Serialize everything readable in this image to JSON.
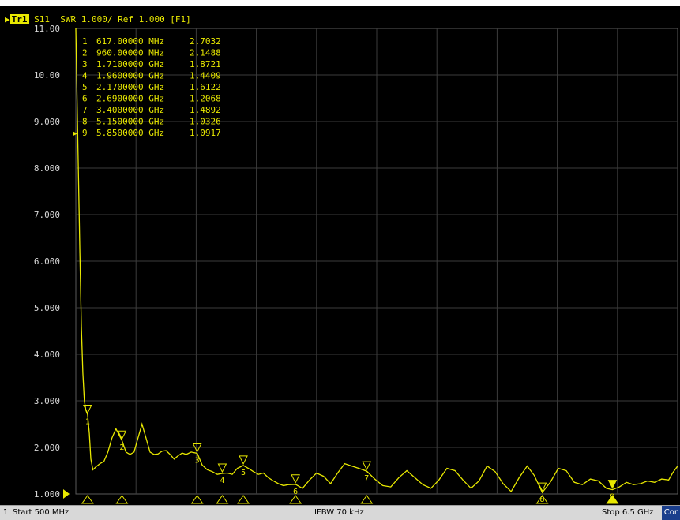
{
  "header": {
    "trace_tag": "Tr1",
    "trace_info": "S11  SWR 1.000/ Ref 1.000 [F1]"
  },
  "colors": {
    "trace": "#e8e800",
    "grid": "#3c3c3c",
    "background": "#000000",
    "cor_badge": "#1a3e8c"
  },
  "status_bar": {
    "channel": "1",
    "start": "Start 500 MHz",
    "ifbw": "IFBW 70 kHz",
    "stop": "Stop 6.5 GHz",
    "cor": "Cor"
  },
  "chart_data": {
    "type": "line",
    "title": "",
    "xlabel": "",
    "ylabel": "",
    "xlim_mhz": [
      500,
      6500
    ],
    "ylim": [
      1.0,
      11.0
    ],
    "y_ticks": [
      "1.000",
      "2.000",
      "3.000",
      "4.000",
      "5.000",
      "6.000",
      "7.000",
      "8.000",
      "9.000",
      "10.00",
      "11.00"
    ],
    "x_divisions": 10,
    "grid": true,
    "reference_level": 1.0,
    "markers": [
      {
        "id": "1",
        "freq": "617.00000 MHz",
        "value": "2.7032",
        "freq_mhz": 617.0,
        "swr": 2.7032,
        "active": false
      },
      {
        "id": "2",
        "freq": "960.00000 MHz",
        "value": "2.1488",
        "freq_mhz": 960.0,
        "swr": 2.1488,
        "active": false
      },
      {
        "id": "3",
        "freq": "1.7100000 GHz",
        "value": "1.8721",
        "freq_mhz": 1710.0,
        "swr": 1.8721,
        "active": false
      },
      {
        "id": "4",
        "freq": "1.9600000 GHz",
        "value": "1.4409",
        "freq_mhz": 1960.0,
        "swr": 1.4409,
        "active": false
      },
      {
        "id": "5",
        "freq": "2.1700000 GHz",
        "value": "1.6122",
        "freq_mhz": 2170.0,
        "swr": 1.6122,
        "active": false
      },
      {
        "id": "6",
        "freq": "2.6900000 GHz",
        "value": "1.2068",
        "freq_mhz": 2690.0,
        "swr": 1.2068,
        "active": false
      },
      {
        "id": "7",
        "freq": "3.4000000 GHz",
        "value": "1.4892",
        "freq_mhz": 3400.0,
        "swr": 1.4892,
        "active": false
      },
      {
        "id": "8",
        "freq": "5.1500000 GHz",
        "value": "1.0326",
        "freq_mhz": 5150.0,
        "swr": 1.0326,
        "active": false
      },
      {
        "id": "9",
        "freq": "5.8500000 GHz",
        "value": "1.0917",
        "freq_mhz": 5850.0,
        "swr": 1.0917,
        "active": true
      }
    ],
    "series": [
      {
        "x": [
          500,
          520,
          540,
          555,
          570,
          585,
          600,
          617,
          635,
          650,
          670,
          700,
          740,
          780,
          820,
          860,
          900,
          960,
          1000,
          1040,
          1080,
          1120,
          1160,
          1200,
          1240,
          1280,
          1320,
          1360,
          1400,
          1440,
          1480,
          1520,
          1560,
          1600,
          1650,
          1710,
          1760,
          1810,
          1860,
          1910,
          1960,
          2010,
          2060,
          2110,
          2170,
          2220,
          2270,
          2320,
          2370,
          2420,
          2470,
          2520,
          2570,
          2620,
          2690,
          2760,
          2830,
          2900,
          2970,
          3040,
          3110,
          3180,
          3250,
          3320,
          3400,
          3480,
          3560,
          3640,
          3720,
          3800,
          3880,
          3960,
          4040,
          4120,
          4200,
          4280,
          4360,
          4440,
          4520,
          4600,
          4680,
          4760,
          4840,
          4920,
          5000,
          5070,
          5150,
          5230,
          5310,
          5390,
          5470,
          5550,
          5630,
          5710,
          5790,
          5850,
          5920,
          5990,
          6060,
          6130,
          6200,
          6270,
          6340,
          6410,
          6450,
          6500
        ],
        "y": [
          11.0,
          8.6,
          6.2,
          4.6,
          3.6,
          3.0,
          2.8,
          2.7032,
          2.3,
          1.75,
          1.52,
          1.58,
          1.65,
          1.7,
          1.9,
          2.2,
          2.4,
          2.1488,
          1.9,
          1.85,
          1.9,
          2.2,
          2.5,
          2.2,
          1.9,
          1.85,
          1.86,
          1.92,
          1.93,
          1.85,
          1.75,
          1.82,
          1.88,
          1.85,
          1.9,
          1.8721,
          1.62,
          1.52,
          1.48,
          1.42,
          1.4409,
          1.45,
          1.42,
          1.55,
          1.6122,
          1.55,
          1.48,
          1.42,
          1.45,
          1.35,
          1.28,
          1.22,
          1.18,
          1.2,
          1.2068,
          1.12,
          1.3,
          1.45,
          1.38,
          1.22,
          1.45,
          1.65,
          1.6,
          1.55,
          1.4892,
          1.32,
          1.18,
          1.15,
          1.35,
          1.5,
          1.35,
          1.2,
          1.12,
          1.3,
          1.55,
          1.5,
          1.3,
          1.12,
          1.28,
          1.6,
          1.48,
          1.22,
          1.05,
          1.35,
          1.6,
          1.4,
          1.0326,
          1.25,
          1.55,
          1.5,
          1.25,
          1.2,
          1.32,
          1.28,
          1.12,
          1.0917,
          1.15,
          1.25,
          1.2,
          1.22,
          1.28,
          1.25,
          1.32,
          1.3,
          1.45,
          1.6
        ]
      }
    ]
  }
}
